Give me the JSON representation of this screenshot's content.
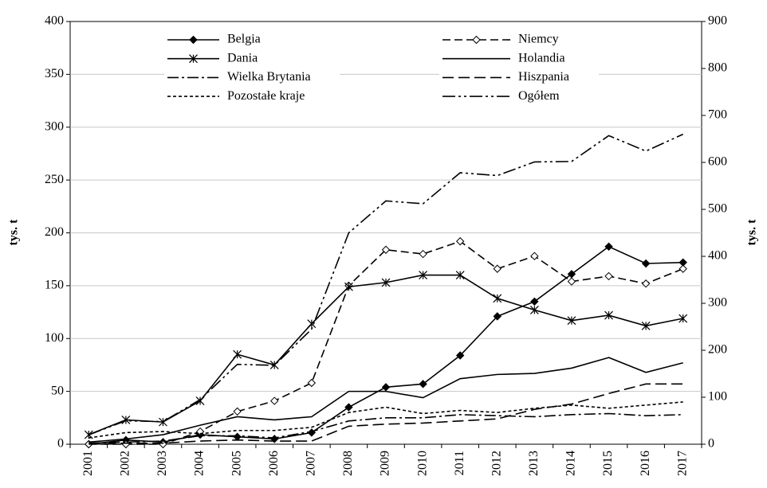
{
  "chart_data": {
    "type": "line",
    "categories": [
      "2001",
      "2002",
      "2003",
      "2004",
      "2005",
      "2006",
      "2007",
      "2008",
      "2009",
      "2010",
      "2011",
      "2012",
      "2013",
      "2014",
      "2015",
      "2016",
      "2017"
    ],
    "ylabel": "tys. t",
    "y2label": "tys. t",
    "ylim": [
      0,
      400
    ],
    "yticks": [
      0,
      50,
      100,
      150,
      200,
      250,
      300,
      350,
      400
    ],
    "y2lim": [
      0,
      900
    ],
    "y2ticks": [
      0,
      100,
      200,
      300,
      400,
      500,
      600,
      700,
      800,
      900
    ],
    "grid": true,
    "legend": "top",
    "series": [
      {
        "name": "Belgia",
        "color": "#000000",
        "dash": "none",
        "marker": "diamond-filled",
        "values": [
          0,
          4,
          2,
          9,
          7,
          5,
          11,
          35,
          54,
          57,
          84,
          121,
          135,
          161,
          187,
          171,
          172
        ]
      },
      {
        "name": "Niemcy",
        "color": "#000000",
        "dash": "10 5",
        "marker": "diamond-open",
        "values": [
          0,
          0,
          0,
          12,
          31,
          41,
          58,
          150,
          184,
          180,
          192,
          166,
          178,
          154,
          159,
          152,
          166
        ]
      },
      {
        "name": "Dania",
        "color": "#000000",
        "dash": "none",
        "marker": "asterisk",
        "values": [
          9,
          23,
          21,
          41,
          85,
          75,
          114,
          149,
          153,
          160,
          160,
          138,
          127,
          117,
          122,
          112,
          119
        ]
      },
      {
        "name": "Holandia",
        "color": "#000000",
        "dash": "none",
        "marker": "none",
        "values": [
          2,
          5,
          9,
          18,
          26,
          23,
          26,
          50,
          50,
          44,
          62,
          66,
          67,
          72,
          82,
          68,
          77
        ]
      },
      {
        "name": "Wielka Brytania",
        "color": "#000000",
        "dash": "14 4 3 4",
        "marker": "none",
        "values": [
          1,
          2,
          3,
          8,
          8,
          6,
          12,
          22,
          25,
          25,
          28,
          27,
          26,
          28,
          29,
          27,
          28
        ]
      },
      {
        "name": "Hiszpania",
        "color": "#000000",
        "dash": "14 6",
        "marker": "none",
        "values": [
          0,
          1,
          1,
          3,
          4,
          3,
          3,
          17,
          19,
          20,
          22,
          24,
          33,
          38,
          48,
          57,
          57
        ]
      },
      {
        "name": "Pozostałe kraje",
        "color": "#000000",
        "dash": "4 3",
        "marker": "none",
        "values": [
          6,
          11,
          12,
          10,
          13,
          13,
          16,
          30,
          35,
          29,
          32,
          30,
          34,
          37,
          34,
          37,
          40
        ]
      },
      {
        "name": "Ogółem",
        "color": "#000000",
        "dash": "16 4 3 4 3 4",
        "marker": "none",
        "axis": "y2",
        "values": [
          20,
          50,
          48,
          95,
          170,
          168,
          245,
          450,
          518,
          512,
          578,
          572,
          601,
          602,
          657,
          624,
          660
        ]
      }
    ]
  }
}
